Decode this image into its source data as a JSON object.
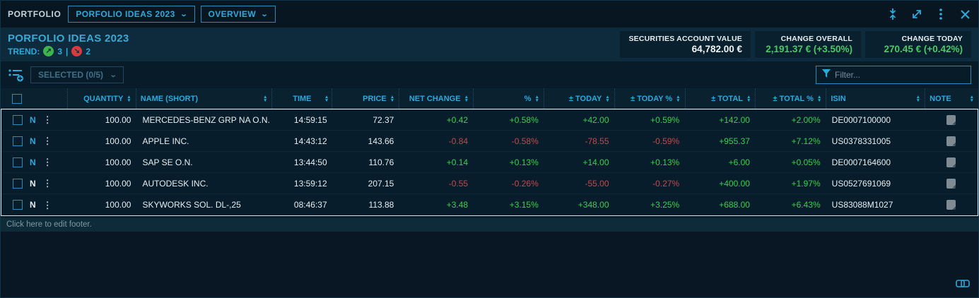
{
  "topbar": {
    "app_label": "PORTFOLIO",
    "portfolio_select": "PORFOLIO IDEAS 2023",
    "view_select": "OVERVIEW",
    "icons": [
      "collapse-icon",
      "expand-icon",
      "kebab-menu-icon",
      "close-icon"
    ]
  },
  "header": {
    "title": "PORFOLIO IDEAS 2023",
    "trend_label": "TREND:",
    "trend_up_count": "3",
    "trend_separator": "|",
    "trend_down_count": "2",
    "stats": [
      {
        "label": "SECURITIES ACCOUNT VALUE",
        "value": "64,782.00 €",
        "color": "white"
      },
      {
        "label": "CHANGE OVERALL",
        "value": "2,191.37 € (+3.50%)",
        "color": "green"
      },
      {
        "label": "CHANGE TODAY",
        "value": "270.45 € (+0.42%)",
        "color": "green"
      }
    ]
  },
  "toolbar": {
    "selected_label": "SELECTED (0/5)",
    "filter_placeholder": "Filter..."
  },
  "table": {
    "columns": [
      "QUANTITY",
      "NAME (SHORT)",
      "TIME",
      "PRICE",
      "NET CHANGE",
      "%",
      "± TODAY",
      "± TODAY %",
      "± TOTAL",
      "± TOTAL %",
      "ISIN",
      "NOTE"
    ],
    "rows": [
      {
        "flag": "N",
        "flag_color": "cyan",
        "quantity": "100.00",
        "name": "MERCEDES-BENZ GRP NA O.N.",
        "time": "14:59:15",
        "price": "72.37",
        "net_change": "+0.42",
        "pct": "+0.58%",
        "today": "+42.00",
        "today_pct": "+0.59%",
        "total": "+142.00",
        "total_pct": "+2.00%",
        "isin": "DE0007100000"
      },
      {
        "flag": "N",
        "flag_color": "cyan",
        "quantity": "100.00",
        "name": "APPLE INC.",
        "time": "14:43:12",
        "price": "143.66",
        "net_change": "-0.84",
        "pct": "-0.58%",
        "today": "-78.55",
        "today_pct": "-0.59%",
        "total": "+955.37",
        "total_pct": "+7.12%",
        "isin": "US0378331005"
      },
      {
        "flag": "N",
        "flag_color": "cyan",
        "quantity": "100.00",
        "name": "SAP SE O.N.",
        "time": "13:44:50",
        "price": "110.76",
        "net_change": "+0.14",
        "pct": "+0.13%",
        "today": "+14.00",
        "today_pct": "+0.13%",
        "total": "+6.00",
        "total_pct": "+0.05%",
        "isin": "DE0007164600"
      },
      {
        "flag": "N",
        "flag_color": "white",
        "quantity": "100.00",
        "name": "AUTODESK INC.",
        "time": "13:59:12",
        "price": "207.15",
        "net_change": "-0.55",
        "pct": "-0.26%",
        "today": "-55.00",
        "today_pct": "-0.27%",
        "total": "+400.00",
        "total_pct": "+1.97%",
        "isin": "US0527691069"
      },
      {
        "flag": "N",
        "flag_color": "white",
        "quantity": "100.00",
        "name": "SKYWORKS SOL. DL-,25",
        "time": "08:46:37",
        "price": "113.88",
        "net_change": "+3.48",
        "pct": "+3.15%",
        "today": "+348.00",
        "today_pct": "+3.25%",
        "total": "+688.00",
        "total_pct": "+6.43%",
        "isin": "US83088M1027"
      }
    ]
  },
  "footer": {
    "edit_label": "Click here to edit footer."
  },
  "colors": {
    "accent_cyan": "#2da9dc",
    "positive_green": "#33d24a",
    "negative_red": "#c4494b",
    "panel_bg": "#081723",
    "header_strip_bg": "#0d2b3c"
  }
}
